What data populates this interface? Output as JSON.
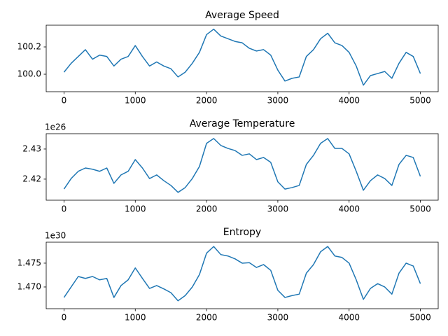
{
  "chart_data": [
    {
      "type": "line",
      "title": "Average Speed",
      "x": [
        0,
        100,
        200,
        300,
        400,
        500,
        600,
        700,
        800,
        900,
        1000,
        1100,
        1200,
        1300,
        1400,
        1500,
        1600,
        1700,
        1800,
        1900,
        2000,
        2100,
        2200,
        2300,
        2400,
        2500,
        2600,
        2700,
        2800,
        2900,
        3000,
        3100,
        3200,
        3300,
        3400,
        3500,
        3600,
        3700,
        3800,
        3900,
        4000,
        4100,
        4200,
        4300,
        4400,
        4500,
        4600,
        4700,
        4800,
        4900,
        5000
      ],
      "values": [
        100.015,
        100.08,
        100.13,
        100.18,
        100.11,
        100.14,
        100.13,
        100.06,
        100.11,
        100.13,
        100.21,
        100.13,
        100.06,
        100.09,
        100.06,
        100.04,
        99.98,
        100.015,
        100.08,
        100.16,
        100.29,
        100.33,
        100.28,
        100.26,
        100.24,
        100.23,
        100.19,
        100.17,
        100.18,
        100.14,
        100.03,
        99.95,
        99.97,
        99.98,
        100.13,
        100.18,
        100.26,
        100.3,
        100.23,
        100.21,
        100.16,
        100.06,
        99.92,
        99.99,
        100.005,
        100.02,
        99.97,
        100.08,
        100.16,
        100.13,
        100.005
      ],
      "color": "#1f77b4",
      "xlim": [
        -250,
        5250
      ],
      "xticks": [
        0,
        1000,
        2000,
        3000,
        4000,
        5000
      ],
      "ylim": [
        99.872,
        100.359
      ],
      "yticks": [
        {
          "value": 100,
          "label": "100.0"
        },
        100.2
      ]
    },
    {
      "type": "line",
      "title": "Average Temperature",
      "offset_label": "1e26",
      "x": [
        0,
        100,
        200,
        300,
        400,
        500,
        600,
        700,
        800,
        900,
        1000,
        1100,
        1200,
        1300,
        1400,
        1500,
        1600,
        1700,
        1800,
        1900,
        2000,
        2100,
        2200,
        2300,
        2400,
        2500,
        2600,
        2700,
        2800,
        2900,
        3000,
        3100,
        3200,
        3300,
        3400,
        3500,
        3600,
        3700,
        3800,
        3900,
        4000,
        4100,
        4200,
        4300,
        4400,
        4500,
        4600,
        4700,
        4800,
        4900,
        5000
      ],
      "values": [
        2.4167,
        2.4202,
        2.4226,
        2.4237,
        2.4233,
        2.4226,
        2.4237,
        2.4186,
        2.4214,
        2.4226,
        2.4265,
        2.4237,
        2.4202,
        2.4214,
        2.4195,
        2.4179,
        2.4156,
        2.4172,
        2.4202,
        2.4242,
        2.4319,
        2.4335,
        2.4312,
        2.4302,
        2.4295,
        2.4279,
        2.4284,
        2.4265,
        2.4272,
        2.4256,
        2.4191,
        2.4167,
        2.4172,
        2.4179,
        2.4249,
        2.4279,
        2.4319,
        2.4335,
        2.4302,
        2.4302,
        2.4284,
        2.4226,
        2.4163,
        2.4195,
        2.4214,
        2.4202,
        2.4179,
        2.4249,
        2.4279,
        2.4272,
        2.4209
      ],
      "color": "#1f77b4",
      "xlim": [
        -250,
        5250
      ],
      "xticks": [
        0,
        1000,
        2000,
        3000,
        4000,
        5000
      ],
      "ylim": [
        2.413,
        2.4351
      ],
      "yticks": [
        2.42,
        2.43
      ]
    },
    {
      "type": "line",
      "title": "Entropy",
      "offset_label": "1e30",
      "x": [
        0,
        100,
        200,
        300,
        400,
        500,
        600,
        700,
        800,
        900,
        1000,
        1100,
        1200,
        1300,
        1400,
        1500,
        1600,
        1700,
        1800,
        1900,
        2000,
        2100,
        2200,
        2300,
        2400,
        2500,
        2600,
        2700,
        2800,
        2900,
        3000,
        3100,
        3200,
        3300,
        3400,
        3500,
        3600,
        3700,
        3800,
        3900,
        4000,
        4100,
        4200,
        4300,
        4400,
        4500,
        4600,
        4700,
        4800,
        4900,
        5000
      ],
      "values": [
        1.4678,
        1.47,
        1.4722,
        1.4718,
        1.4722,
        1.4715,
        1.4718,
        1.4678,
        1.4703,
        1.4715,
        1.474,
        1.4718,
        1.4697,
        1.4703,
        1.4696,
        1.4688,
        1.4671,
        1.4682,
        1.47,
        1.4726,
        1.4771,
        1.4785,
        1.4768,
        1.4765,
        1.4759,
        1.475,
        1.4751,
        1.4741,
        1.4747,
        1.4735,
        1.4693,
        1.4678,
        1.4682,
        1.4685,
        1.4729,
        1.4747,
        1.4774,
        1.4785,
        1.4765,
        1.4762,
        1.475,
        1.4715,
        1.4674,
        1.4697,
        1.4707,
        1.47,
        1.4685,
        1.4729,
        1.475,
        1.4744,
        1.4707
      ],
      "color": "#1f77b4",
      "xlim": [
        -250,
        5250
      ],
      "xticks": [
        0,
        1000,
        2000,
        3000,
        4000,
        5000
      ],
      "ylim": [
        1.46544,
        1.4794
      ],
      "yticks": [
        {
          "value": 1.47,
          "label": "1.470"
        },
        1.475
      ]
    }
  ]
}
